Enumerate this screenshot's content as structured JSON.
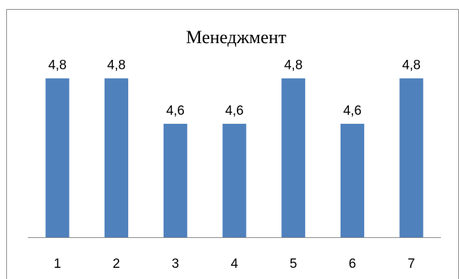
{
  "chart_data": {
    "type": "bar",
    "title": "Менеджмент",
    "categories": [
      "1",
      "2",
      "3",
      "4",
      "5",
      "6",
      "7"
    ],
    "values": [
      4.8,
      4.8,
      4.6,
      4.6,
      4.8,
      4.6,
      4.8
    ],
    "data_labels": [
      "4,8",
      "4,8",
      "4,6",
      "4,6",
      "4,8",
      "4,6",
      "4,8"
    ],
    "xlabel": "",
    "ylabel": "",
    "ylim": [
      4.1,
      4.9
    ],
    "grid": false,
    "legend": "none",
    "bar_color": "#4F81BD",
    "axis_color": "#868686",
    "frame_color": "#868686"
  }
}
